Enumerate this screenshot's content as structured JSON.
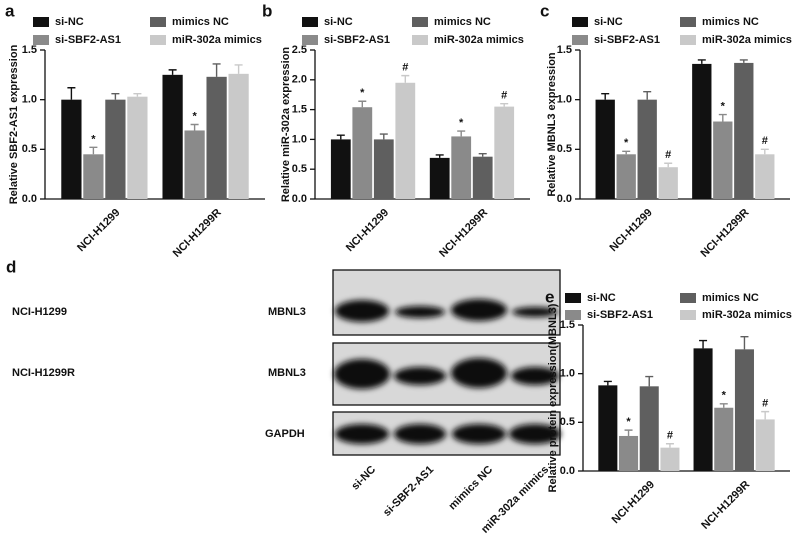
{
  "chart_data": [
    {
      "type": "bar",
      "panel": "a",
      "ylabel": "Relative SBF2-AS1 expression",
      "categories": [
        "NCI-H1299",
        "NCI-H1299R"
      ],
      "ylim": [
        0,
        1.5
      ],
      "yticks": [
        {
          "value": 0,
          "label": "0.0"
        },
        0.5,
        {
          "value": 1,
          "label": "1.0"
        },
        1.5
      ],
      "series": [
        {
          "name": "si-NC",
          "color": "#111111",
          "values": [
            1.0,
            1.25
          ],
          "errors": [
            0.12,
            0.05
          ]
        },
        {
          "name": "si-SBF2-AS1",
          "color": "#8a8a8a",
          "values": [
            0.45,
            0.69
          ],
          "errors": [
            0.07,
            0.06
          ],
          "annotations": [
            "*",
            "*"
          ]
        },
        {
          "name": "mimics NC",
          "color": "#5f5f5f",
          "values": [
            1.0,
            1.23
          ],
          "errors": [
            0.06,
            0.13
          ]
        },
        {
          "name": "miR-302a mimics",
          "color": "#c9c9c9",
          "values": [
            1.03,
            1.26
          ],
          "errors": [
            0.03,
            0.09
          ]
        }
      ]
    },
    {
      "type": "bar",
      "panel": "b",
      "ylabel": "Relative miR-302a expression",
      "categories": [
        "NCI-H1299",
        "NCI-H1299R"
      ],
      "ylim": [
        0,
        2.5
      ],
      "yticks": [
        {
          "value": 0,
          "label": "0.0"
        },
        0.5,
        {
          "value": 1,
          "label": "1.0"
        },
        1.5,
        {
          "value": 2,
          "label": "2.0"
        },
        2.5
      ],
      "series": [
        {
          "name": "si-NC",
          "color": "#111111",
          "values": [
            1.0,
            0.69
          ],
          "errors": [
            0.07,
            0.05
          ]
        },
        {
          "name": "si-SBF2-AS1",
          "color": "#8a8a8a",
          "values": [
            1.54,
            1.05
          ],
          "errors": [
            0.1,
            0.09
          ],
          "annotations": [
            "*",
            "*"
          ]
        },
        {
          "name": "mimics NC",
          "color": "#5f5f5f",
          "values": [
            1.0,
            0.71
          ],
          "errors": [
            0.09,
            0.05
          ]
        },
        {
          "name": "miR-302a mimics",
          "color": "#c9c9c9",
          "values": [
            1.95,
            1.55
          ],
          "errors": [
            0.12,
            0.05
          ],
          "annotations": [
            "#",
            "#"
          ]
        }
      ]
    },
    {
      "type": "bar",
      "panel": "c",
      "ylabel": "Relative  MBNL3  expression",
      "categories": [
        "NCI-H1299",
        "NCI-H1299R"
      ],
      "ylim": [
        0,
        1.5
      ],
      "yticks": [
        {
          "value": 0,
          "label": "0.0"
        },
        0.5,
        {
          "value": 1,
          "label": "1.0"
        },
        1.5
      ],
      "series": [
        {
          "name": "si-NC",
          "color": "#111111",
          "values": [
            1.0,
            1.36
          ],
          "errors": [
            0.06,
            0.04
          ]
        },
        {
          "name": "si-SBF2-AS1",
          "color": "#8a8a8a",
          "values": [
            0.45,
            0.78
          ],
          "errors": [
            0.03,
            0.07
          ],
          "annotations": [
            "*",
            "*"
          ]
        },
        {
          "name": "mimics NC",
          "color": "#5f5f5f",
          "values": [
            1.0,
            1.37
          ],
          "errors": [
            0.08,
            0.03
          ]
        },
        {
          "name": "miR-302a mimics",
          "color": "#c9c9c9",
          "values": [
            0.32,
            0.45
          ],
          "errors": [
            0.04,
            0.05
          ],
          "annotations": [
            "#",
            "#"
          ]
        }
      ]
    },
    {
      "type": "bar",
      "panel": "e",
      "ylabel": "Relative protein expression(MBNL3)",
      "categories": [
        "NCI-H1299",
        "NCI-H1299R"
      ],
      "ylim": [
        0,
        1.5
      ],
      "yticks": [
        {
          "value": 0,
          "label": "0.0"
        },
        0.5,
        {
          "value": 1,
          "label": "1.0"
        },
        1.5
      ],
      "series": [
        {
          "name": "si-NC",
          "color": "#111111",
          "values": [
            0.88,
            1.26
          ],
          "errors": [
            0.04,
            0.08
          ]
        },
        {
          "name": "si-SBF2-AS1",
          "color": "#8a8a8a",
          "values": [
            0.36,
            0.65
          ],
          "errors": [
            0.06,
            0.04
          ],
          "annotations": [
            "*",
            "*"
          ]
        },
        {
          "name": "mimics NC",
          "color": "#5f5f5f",
          "values": [
            0.87,
            1.25
          ],
          "errors": [
            0.1,
            0.13
          ]
        },
        {
          "name": "miR-302a mimics",
          "color": "#c9c9c9",
          "values": [
            0.24,
            0.53
          ],
          "errors": [
            0.04,
            0.08
          ],
          "annotations": [
            "#",
            "#"
          ]
        }
      ]
    }
  ],
  "blot": {
    "panel": "d",
    "rows": [
      {
        "cell": "NCI-H1299",
        "protein": "MBNL3"
      },
      {
        "cell": "NCI-H1299R",
        "protein": "MBNL3"
      },
      {
        "protein": "GAPDH"
      }
    ],
    "lanes": [
      "si-NC",
      "si-SBF2-AS1",
      "mimics NC",
      "miR-302a mimics"
    ]
  }
}
